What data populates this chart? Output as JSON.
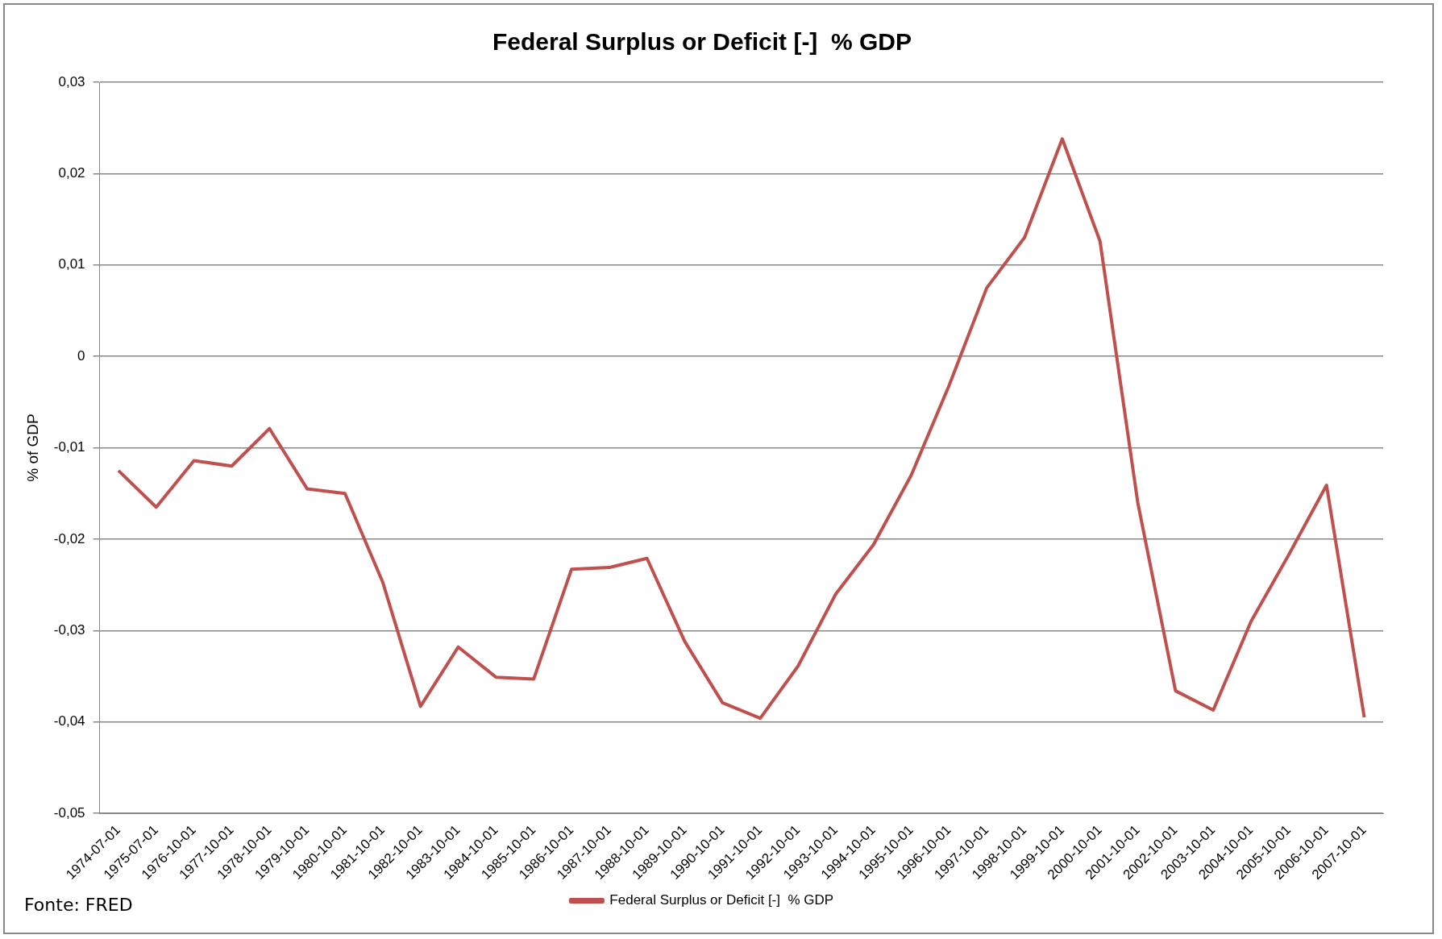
{
  "chart_data": {
    "type": "line",
    "title": "Federal Surplus or Deficit [-]  % GDP",
    "ylabel": "% of GDP",
    "categories": [
      "1974-07-01",
      "1975-07-01",
      "1976-10-01",
      "1977-10-01",
      "1978-10-01",
      "1979-10-01",
      "1980-10-01",
      "1981-10-01",
      "1982-10-01",
      "1983-10-01",
      "1984-10-01",
      "1985-10-01",
      "1986-10-01",
      "1987-10-01",
      "1988-10-01",
      "1989-10-01",
      "1990-10-01",
      "1991-10-01",
      "1992-10-01",
      "1993-10-01",
      "1994-10-01",
      "1995-10-01",
      "1996-10-01",
      "1997-10-01",
      "1998-10-01",
      "1999-10-01",
      "2000-10-01",
      "2001-10-01",
      "2002-10-01",
      "2003-10-01",
      "2004-10-01",
      "2005-10-01",
      "2006-10-01",
      "2007-10-01"
    ],
    "series": [
      {
        "name": "Federal Surplus or Deficit [-]  % GDP",
        "color": "#c0504d",
        "values": [
          -0.0125,
          -0.0165,
          -0.0114,
          -0.012,
          -0.0079,
          -0.0145,
          -0.015,
          -0.0247,
          -0.0383,
          -0.0318,
          -0.0351,
          -0.0353,
          -0.0233,
          -0.0231,
          -0.0221,
          -0.0312,
          -0.0379,
          -0.0396,
          -0.0339,
          -0.026,
          -0.0206,
          -0.013,
          -0.0032,
          0.0075,
          0.013,
          0.0238,
          0.0126,
          -0.016,
          -0.0366,
          -0.0387,
          -0.029,
          -0.0217,
          -0.0141,
          -0.0395
        ]
      }
    ],
    "ylim": [
      -0.05,
      0.03
    ],
    "yticks": [
      {
        "value": -0.05,
        "label": "-0,05"
      },
      {
        "value": -0.04,
        "label": "-0,04"
      },
      {
        "value": -0.03,
        "label": "-0,03"
      },
      {
        "value": -0.02,
        "label": "-0,02"
      },
      {
        "value": -0.01,
        "label": "-0,01"
      },
      0,
      {
        "value": 0.01,
        "label": "0,01"
      },
      {
        "value": 0.02,
        "label": "0,02"
      },
      {
        "value": 0.03,
        "label": "0,03"
      }
    ],
    "grid": "y",
    "legend": "bottom",
    "marker": "none",
    "line_style": "solid",
    "annotations": [
      "Fonte: FRED"
    ]
  }
}
